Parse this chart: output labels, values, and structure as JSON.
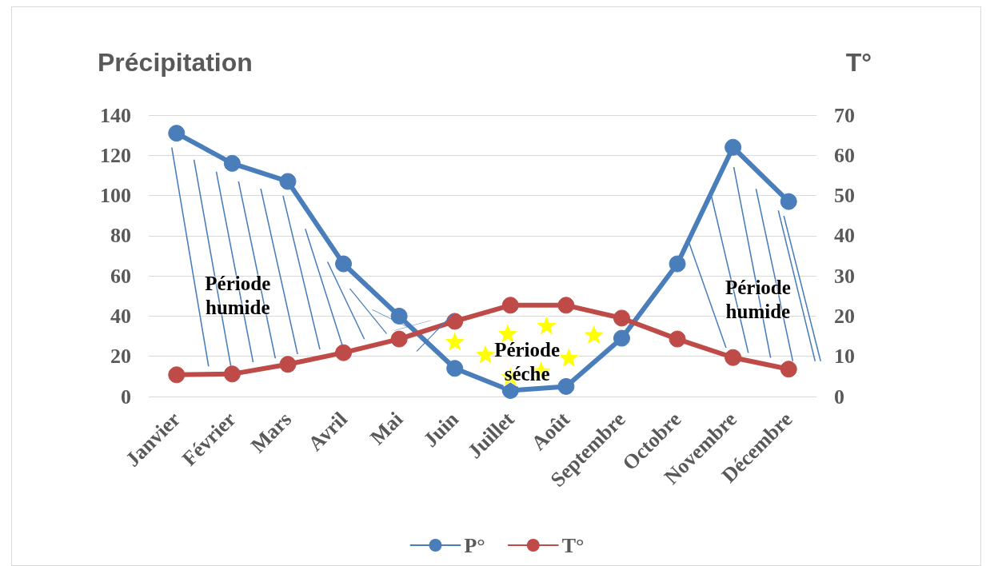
{
  "chart_data": {
    "type": "line",
    "ylabel": "Précipitation",
    "y2label": "T°",
    "categories": [
      "Janvier",
      "Février",
      "Mars",
      "Avril",
      "Mai",
      "Juin",
      "Juillet",
      "Août",
      "Septembre",
      "Octobre",
      "Novembre",
      "Décembre"
    ],
    "series": [
      {
        "name": "P°",
        "color": "#4a7ebb",
        "values": [
          131,
          116,
          107,
          66,
          40,
          14,
          3,
          5,
          29,
          66,
          124,
          97
        ]
      },
      {
        "name": "T°",
        "color": "#be4b48",
        "axis": "y2",
        "values": [
          5.4,
          5.6,
          8,
          10.9,
          14.3,
          18.7,
          22.7,
          22.7,
          19.5,
          14.3,
          9.7,
          6.8
        ]
      }
    ],
    "ylim": [
      0,
      140
    ],
    "yticks": [
      0,
      20,
      40,
      60,
      80,
      100,
      120,
      140
    ],
    "y2lim": [
      0,
      70
    ],
    "y2ticks": [
      0,
      10,
      20,
      30,
      40,
      50,
      60,
      70
    ],
    "annotations": [
      "Période humide",
      "Période séche",
      "Période humide"
    ],
    "grid": "y",
    "legend": "bottom",
    "marker": "circle",
    "line_style": "solid"
  }
}
